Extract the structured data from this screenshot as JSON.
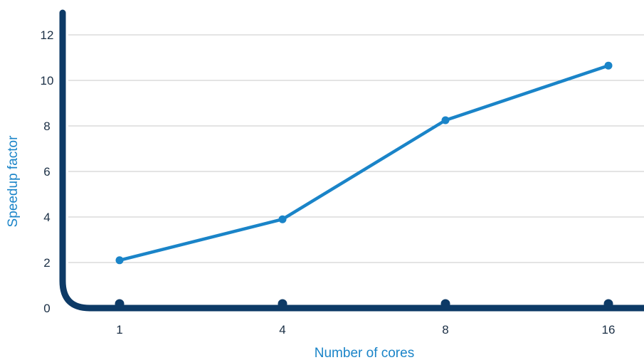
{
  "chart_data": {
    "type": "line",
    "xlabel": "Number of cores",
    "ylabel": "Speedup factor",
    "categories": [
      "1",
      "4",
      "8",
      "16"
    ],
    "series": [
      {
        "values": [
          2.1,
          3.9,
          8.25,
          10.65
        ]
      }
    ],
    "ylim": [
      0,
      12
    ],
    "yticks": [
      "0",
      "2",
      "4",
      "6",
      "8",
      "10",
      "12"
    ],
    "grid": true,
    "legend": "none"
  },
  "colors": {
    "line": "#1a84c8",
    "axis": "#0d3a66",
    "grid": "#c8c8c8",
    "axis_title": "#1a84c8",
    "tick_label": "#1b2f45"
  }
}
